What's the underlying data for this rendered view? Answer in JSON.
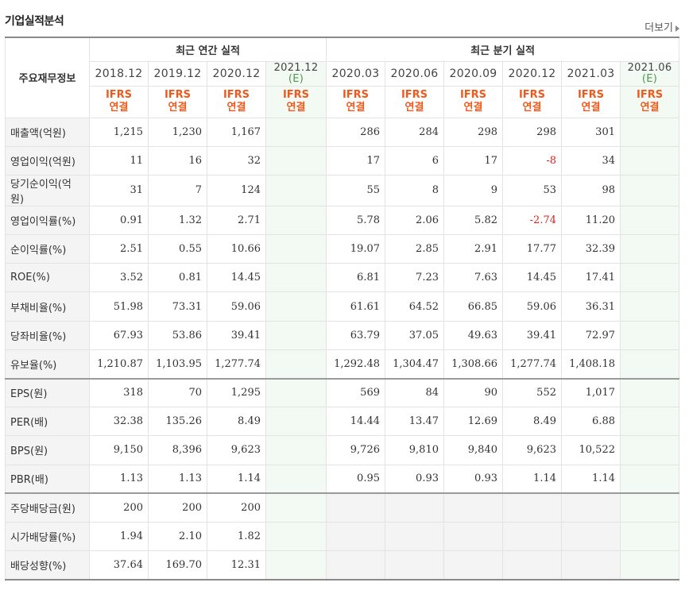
{
  "title": "기업실적분석",
  "more_label": "더보기",
  "header": {
    "row_label": "주요재무정보",
    "annual_label": "최근 연간 실적",
    "quarter_label": "최근 분기 실적",
    "ifrs_top": "IFRS",
    "ifrs_bottom": "연결",
    "est_suffix": "(E)",
    "annual_periods": [
      "2018.12",
      "2019.12",
      "2020.12",
      "2021.12"
    ],
    "quarter_periods": [
      "2020.03",
      "2020.06",
      "2020.09",
      "2020.12",
      "2021.03",
      "2021.06"
    ]
  },
  "rows": [
    {
      "label": "매출액(억원)",
      "annual": [
        "1,215",
        "1,230",
        "1,167",
        ""
      ],
      "quarter": [
        "286",
        "284",
        "298",
        "298",
        "301",
        ""
      ],
      "neg": []
    },
    {
      "label": "영업이익(억원)",
      "annual": [
        "11",
        "16",
        "32",
        ""
      ],
      "quarter": [
        "17",
        "6",
        "17",
        "-8",
        "34",
        ""
      ],
      "neg": [
        "q3"
      ]
    },
    {
      "label": "당기순이익(억원)",
      "annual": [
        "31",
        "7",
        "124",
        ""
      ],
      "quarter": [
        "55",
        "8",
        "9",
        "53",
        "98",
        ""
      ],
      "neg": []
    },
    {
      "label": "영업이익률(%)",
      "annual": [
        "0.91",
        "1.32",
        "2.71",
        ""
      ],
      "quarter": [
        "5.78",
        "2.06",
        "5.82",
        "-2.74",
        "11.20",
        ""
      ],
      "neg": [
        "q3"
      ]
    },
    {
      "label": "순이익률(%)",
      "annual": [
        "2.51",
        "0.55",
        "10.66",
        ""
      ],
      "quarter": [
        "19.07",
        "2.85",
        "2.91",
        "17.77",
        "32.39",
        ""
      ],
      "neg": []
    },
    {
      "label": "ROE(%)",
      "annual": [
        "3.52",
        "0.81",
        "14.45",
        ""
      ],
      "quarter": [
        "6.81",
        "7.23",
        "7.63",
        "14.45",
        "17.41",
        ""
      ],
      "neg": []
    },
    {
      "label": "부채비율(%)",
      "annual": [
        "51.98",
        "73.31",
        "59.06",
        ""
      ],
      "quarter": [
        "61.61",
        "64.52",
        "66.85",
        "59.06",
        "36.31",
        ""
      ],
      "neg": []
    },
    {
      "label": "당좌비율(%)",
      "annual": [
        "67.93",
        "53.86",
        "39.41",
        ""
      ],
      "quarter": [
        "63.79",
        "37.05",
        "49.63",
        "39.41",
        "72.97",
        ""
      ],
      "neg": []
    },
    {
      "label": "유보율(%)",
      "annual": [
        "1,210.87",
        "1,103.95",
        "1,277.74",
        ""
      ],
      "quarter": [
        "1,292.48",
        "1,304.47",
        "1,308.66",
        "1,277.74",
        "1,408.18",
        ""
      ],
      "neg": []
    },
    {
      "label": "EPS(원)",
      "annual": [
        "318",
        "70",
        "1,295",
        ""
      ],
      "quarter": [
        "569",
        "84",
        "90",
        "552",
        "1,017",
        ""
      ],
      "neg": [],
      "sep": true
    },
    {
      "label": "PER(배)",
      "annual": [
        "32.38",
        "135.26",
        "8.49",
        ""
      ],
      "quarter": [
        "14.44",
        "13.47",
        "12.69",
        "8.49",
        "6.88",
        ""
      ],
      "neg": []
    },
    {
      "label": "BPS(원)",
      "annual": [
        "9,150",
        "8,396",
        "9,623",
        ""
      ],
      "quarter": [
        "9,726",
        "9,810",
        "9,840",
        "9,623",
        "10,522",
        ""
      ],
      "neg": []
    },
    {
      "label": "PBR(배)",
      "annual": [
        "1.13",
        "1.13",
        "1.14",
        ""
      ],
      "quarter": [
        "0.95",
        "0.93",
        "0.93",
        "1.14",
        "1.14",
        ""
      ],
      "neg": []
    },
    {
      "label": "주당배당금(원)",
      "annual": [
        "200",
        "200",
        "200",
        ""
      ],
      "quarter": [
        "",
        "",
        "",
        "",
        "",
        ""
      ],
      "neg": [],
      "sep": true,
      "quarter_blank": true
    },
    {
      "label": "시가배당률(%)",
      "annual": [
        "1.94",
        "2.10",
        "1.82",
        ""
      ],
      "quarter": [
        "",
        "",
        "",
        "",
        "",
        ""
      ],
      "neg": [],
      "quarter_blank": true
    },
    {
      "label": "배당성향(%)",
      "annual": [
        "37.64",
        "169.70",
        "12.31",
        ""
      ],
      "quarter": [
        "",
        "",
        "",
        "",
        "",
        ""
      ],
      "neg": [],
      "quarter_blank": true
    }
  ]
}
